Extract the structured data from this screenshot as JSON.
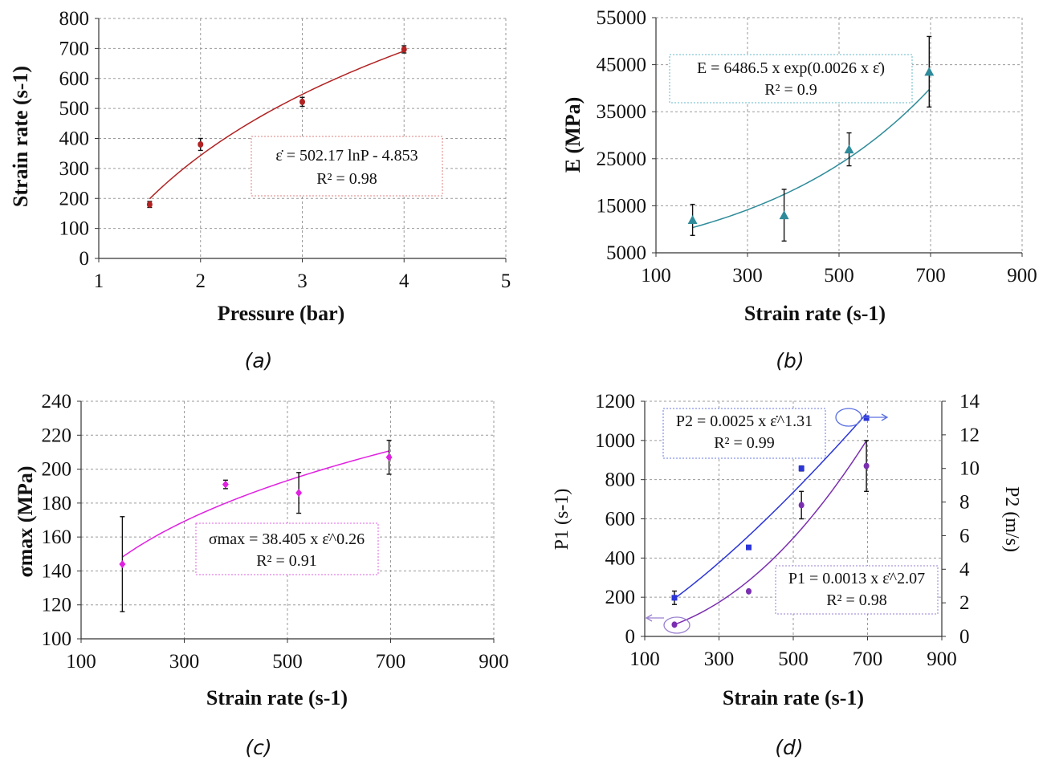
{
  "chart_data": [
    {
      "id": "a",
      "type": "scatter",
      "caption": "(a)",
      "xlabel": "Pressure (bar)",
      "ylabel": "Strain rate (s-1)",
      "xlim": [
        1,
        5
      ],
      "ylim": [
        0,
        800
      ],
      "xticks": [
        1,
        2,
        3,
        4,
        5
      ],
      "yticks": [
        0,
        100,
        200,
        300,
        400,
        500,
        600,
        700,
        800
      ],
      "grid": true,
      "color": "#b22222",
      "series": [
        {
          "x": [
            1.5,
            2,
            3,
            4
          ],
          "y": [
            180,
            380,
            522,
            697
          ],
          "err": [
            10,
            20,
            15,
            12
          ]
        }
      ],
      "fit": {
        "kind": "log",
        "a": 502.17,
        "b": -4.853,
        "xrange": [
          1.5,
          4
        ]
      },
      "equation": {
        "line1": "ε̇ = 502.17 lnP - 4.853",
        "line2": "R² = 0.98"
      }
    },
    {
      "id": "b",
      "type": "scatter",
      "caption": "(b)",
      "xlabel": "Strain rate (s-1)",
      "ylabel": "E (MPa)",
      "xlim": [
        100,
        900
      ],
      "ylim": [
        5000,
        55000
      ],
      "xticks": [
        100,
        300,
        500,
        700,
        900
      ],
      "yticks": [
        5000,
        15000,
        25000,
        35000,
        45000,
        55000
      ],
      "grid": true,
      "color": "#2e8b9a",
      "series": [
        {
          "x": [
            180,
            380,
            522,
            697
          ],
          "y": [
            12000,
            13000,
            27000,
            43500
          ],
          "err": [
            3300,
            5500,
            3500,
            7500
          ]
        }
      ],
      "fit": {
        "kind": "exp",
        "a": 6486.5,
        "b": 0.0026,
        "xrange": [
          180,
          697
        ]
      },
      "equation": {
        "line1": "E = 6486.5 x exp(0.0026 x ε̇)",
        "line2": "R² = 0.9"
      }
    },
    {
      "id": "c",
      "type": "scatter",
      "caption": "(c)",
      "xlabel": "Strain rate (s-1)",
      "ylabel": "σmax (MPa)",
      "xlim": [
        100,
        900
      ],
      "ylim": [
        100,
        240
      ],
      "xticks": [
        100,
        300,
        500,
        700,
        900
      ],
      "yticks": [
        100,
        120,
        140,
        160,
        180,
        200,
        220,
        240
      ],
      "grid": true,
      "color": "#e020e0",
      "series": [
        {
          "x": [
            180,
            380,
            522,
            697
          ],
          "y": [
            144,
            191,
            186,
            207
          ],
          "err": [
            28,
            2.5,
            12,
            10
          ]
        }
      ],
      "fit": {
        "kind": "power",
        "a": 38.405,
        "b": 0.26,
        "xrange": [
          180,
          697
        ]
      },
      "equation": {
        "line1": "σmax = 38.405 x ε̇^0.26",
        "line2": "R² = 0.91"
      }
    },
    {
      "id": "d",
      "type": "scatter",
      "caption": "(d)",
      "xlabel": "Strain rate (s-1)",
      "ylabel": "P1 (s-1)",
      "y2label": "P2 (m/s)",
      "xlim": [
        100,
        900
      ],
      "ylim": [
        0,
        1200
      ],
      "y2lim": [
        0,
        14
      ],
      "xticks": [
        100,
        300,
        500,
        700,
        900
      ],
      "yticks": [
        0,
        200,
        400,
        600,
        800,
        1000,
        1200
      ],
      "y2ticks": [
        0,
        2,
        4,
        6,
        8,
        10,
        12,
        14
      ],
      "grid": true,
      "series": [
        {
          "name": "P1",
          "axis": "left",
          "color": "#7a2fb0",
          "marker": "circle",
          "x": [
            180,
            380,
            522,
            697
          ],
          "y": [
            60,
            230,
            670,
            870
          ],
          "err": [
            0,
            0,
            70,
            130
          ]
        },
        {
          "name": "P2",
          "axis": "right",
          "color": "#2b35d8",
          "marker": "square",
          "x": [
            180,
            380,
            522,
            697
          ],
          "y": [
            2.3,
            5.3,
            10,
            13
          ],
          "err": [
            0.4,
            0,
            0.15,
            0
          ]
        }
      ],
      "fits": [
        {
          "series": "P2",
          "kind": "power",
          "a": 0.0025,
          "b": 1.31,
          "xrange": [
            180,
            697
          ],
          "color": "#2b35d8"
        },
        {
          "series": "P1",
          "kind": "power",
          "a": 0.0013,
          "b": 2.07,
          "xrange": [
            180,
            697
          ],
          "color": "#7a2fb0"
        }
      ],
      "equations": [
        {
          "line1": "P2 = 0.0025 x ε̇^1.31",
          "line2": "R² = 0.99"
        },
        {
          "line1": "P1 = 0.0013 x ε̇^2.07",
          "line2": "R² = 0.98"
        }
      ]
    }
  ]
}
